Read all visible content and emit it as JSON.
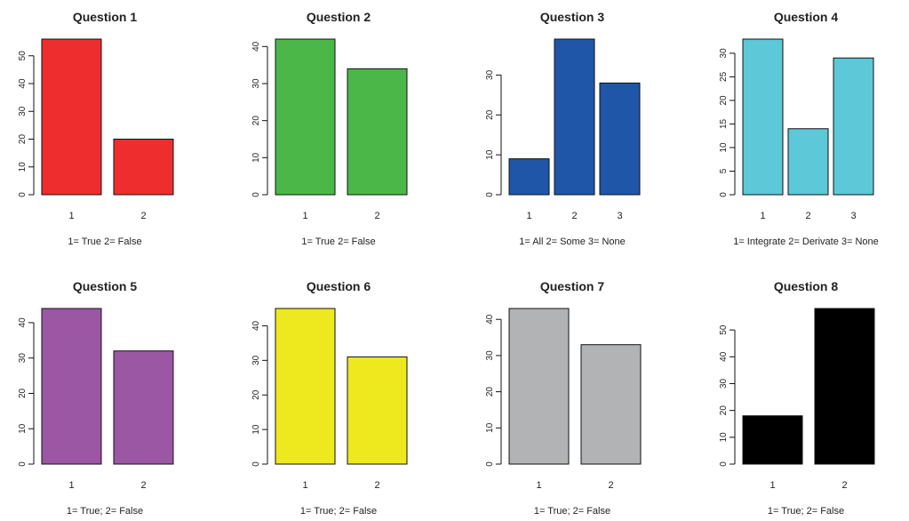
{
  "chart_data": [
    {
      "type": "bar",
      "title": "Question 1",
      "xlabel": "1= True 2= False",
      "categories": [
        "1",
        "2"
      ],
      "values": [
        56,
        20
      ],
      "ylim": [
        0,
        56
      ],
      "yticks": [
        0,
        10,
        20,
        30,
        40,
        50
      ],
      "color": "#EE2E2E"
    },
    {
      "type": "bar",
      "title": "Question 2",
      "xlabel": "1= True 2= False",
      "categories": [
        "1",
        "2"
      ],
      "values": [
        42,
        34
      ],
      "ylim": [
        0,
        42
      ],
      "yticks": [
        0,
        10,
        20,
        30,
        40
      ],
      "color": "#4BB748"
    },
    {
      "type": "bar",
      "title": "Question 3",
      "xlabel": "1= All 2= Some 3= None",
      "categories": [
        "1",
        "2",
        "3"
      ],
      "values": [
        9,
        39,
        28
      ],
      "ylim": [
        0,
        39
      ],
      "yticks": [
        0,
        10,
        20,
        30
      ],
      "color": "#1F56A8"
    },
    {
      "type": "bar",
      "title": "Question 4",
      "xlabel": "1= Integrate 2= Derivate 3= None",
      "categories": [
        "1",
        "2",
        "3"
      ],
      "values": [
        33,
        14,
        29
      ],
      "ylim": [
        0,
        33
      ],
      "yticks": [
        0,
        5,
        10,
        15,
        20,
        25,
        30
      ],
      "color": "#5CC8D8"
    },
    {
      "type": "bar",
      "title": "Question 5",
      "xlabel": "1= True; 2= False",
      "categories": [
        "1",
        "2"
      ],
      "values": [
        44,
        32
      ],
      "ylim": [
        0,
        44
      ],
      "yticks": [
        0,
        10,
        20,
        30,
        40
      ],
      "color": "#9B57A4"
    },
    {
      "type": "bar",
      "title": "Question 6",
      "xlabel": "1= True; 2= False",
      "categories": [
        "1",
        "2"
      ],
      "values": [
        45,
        31
      ],
      "ylim": [
        0,
        45
      ],
      "yticks": [
        0,
        10,
        20,
        30,
        40
      ],
      "color": "#EEE81E"
    },
    {
      "type": "bar",
      "title": "Question 7",
      "xlabel": "1= True; 2= False",
      "categories": [
        "1",
        "2"
      ],
      "values": [
        43,
        33
      ],
      "ylim": [
        0,
        43
      ],
      "yticks": [
        0,
        10,
        20,
        30,
        40
      ],
      "color": "#B1B3B4"
    },
    {
      "type": "bar",
      "title": "Question 8",
      "xlabel": "1= True; 2= False",
      "categories": [
        "1",
        "2"
      ],
      "values": [
        18,
        58
      ],
      "ylim": [
        0,
        58
      ],
      "yticks": [
        0,
        10,
        20,
        30,
        40,
        50
      ],
      "color": "#000000"
    }
  ]
}
